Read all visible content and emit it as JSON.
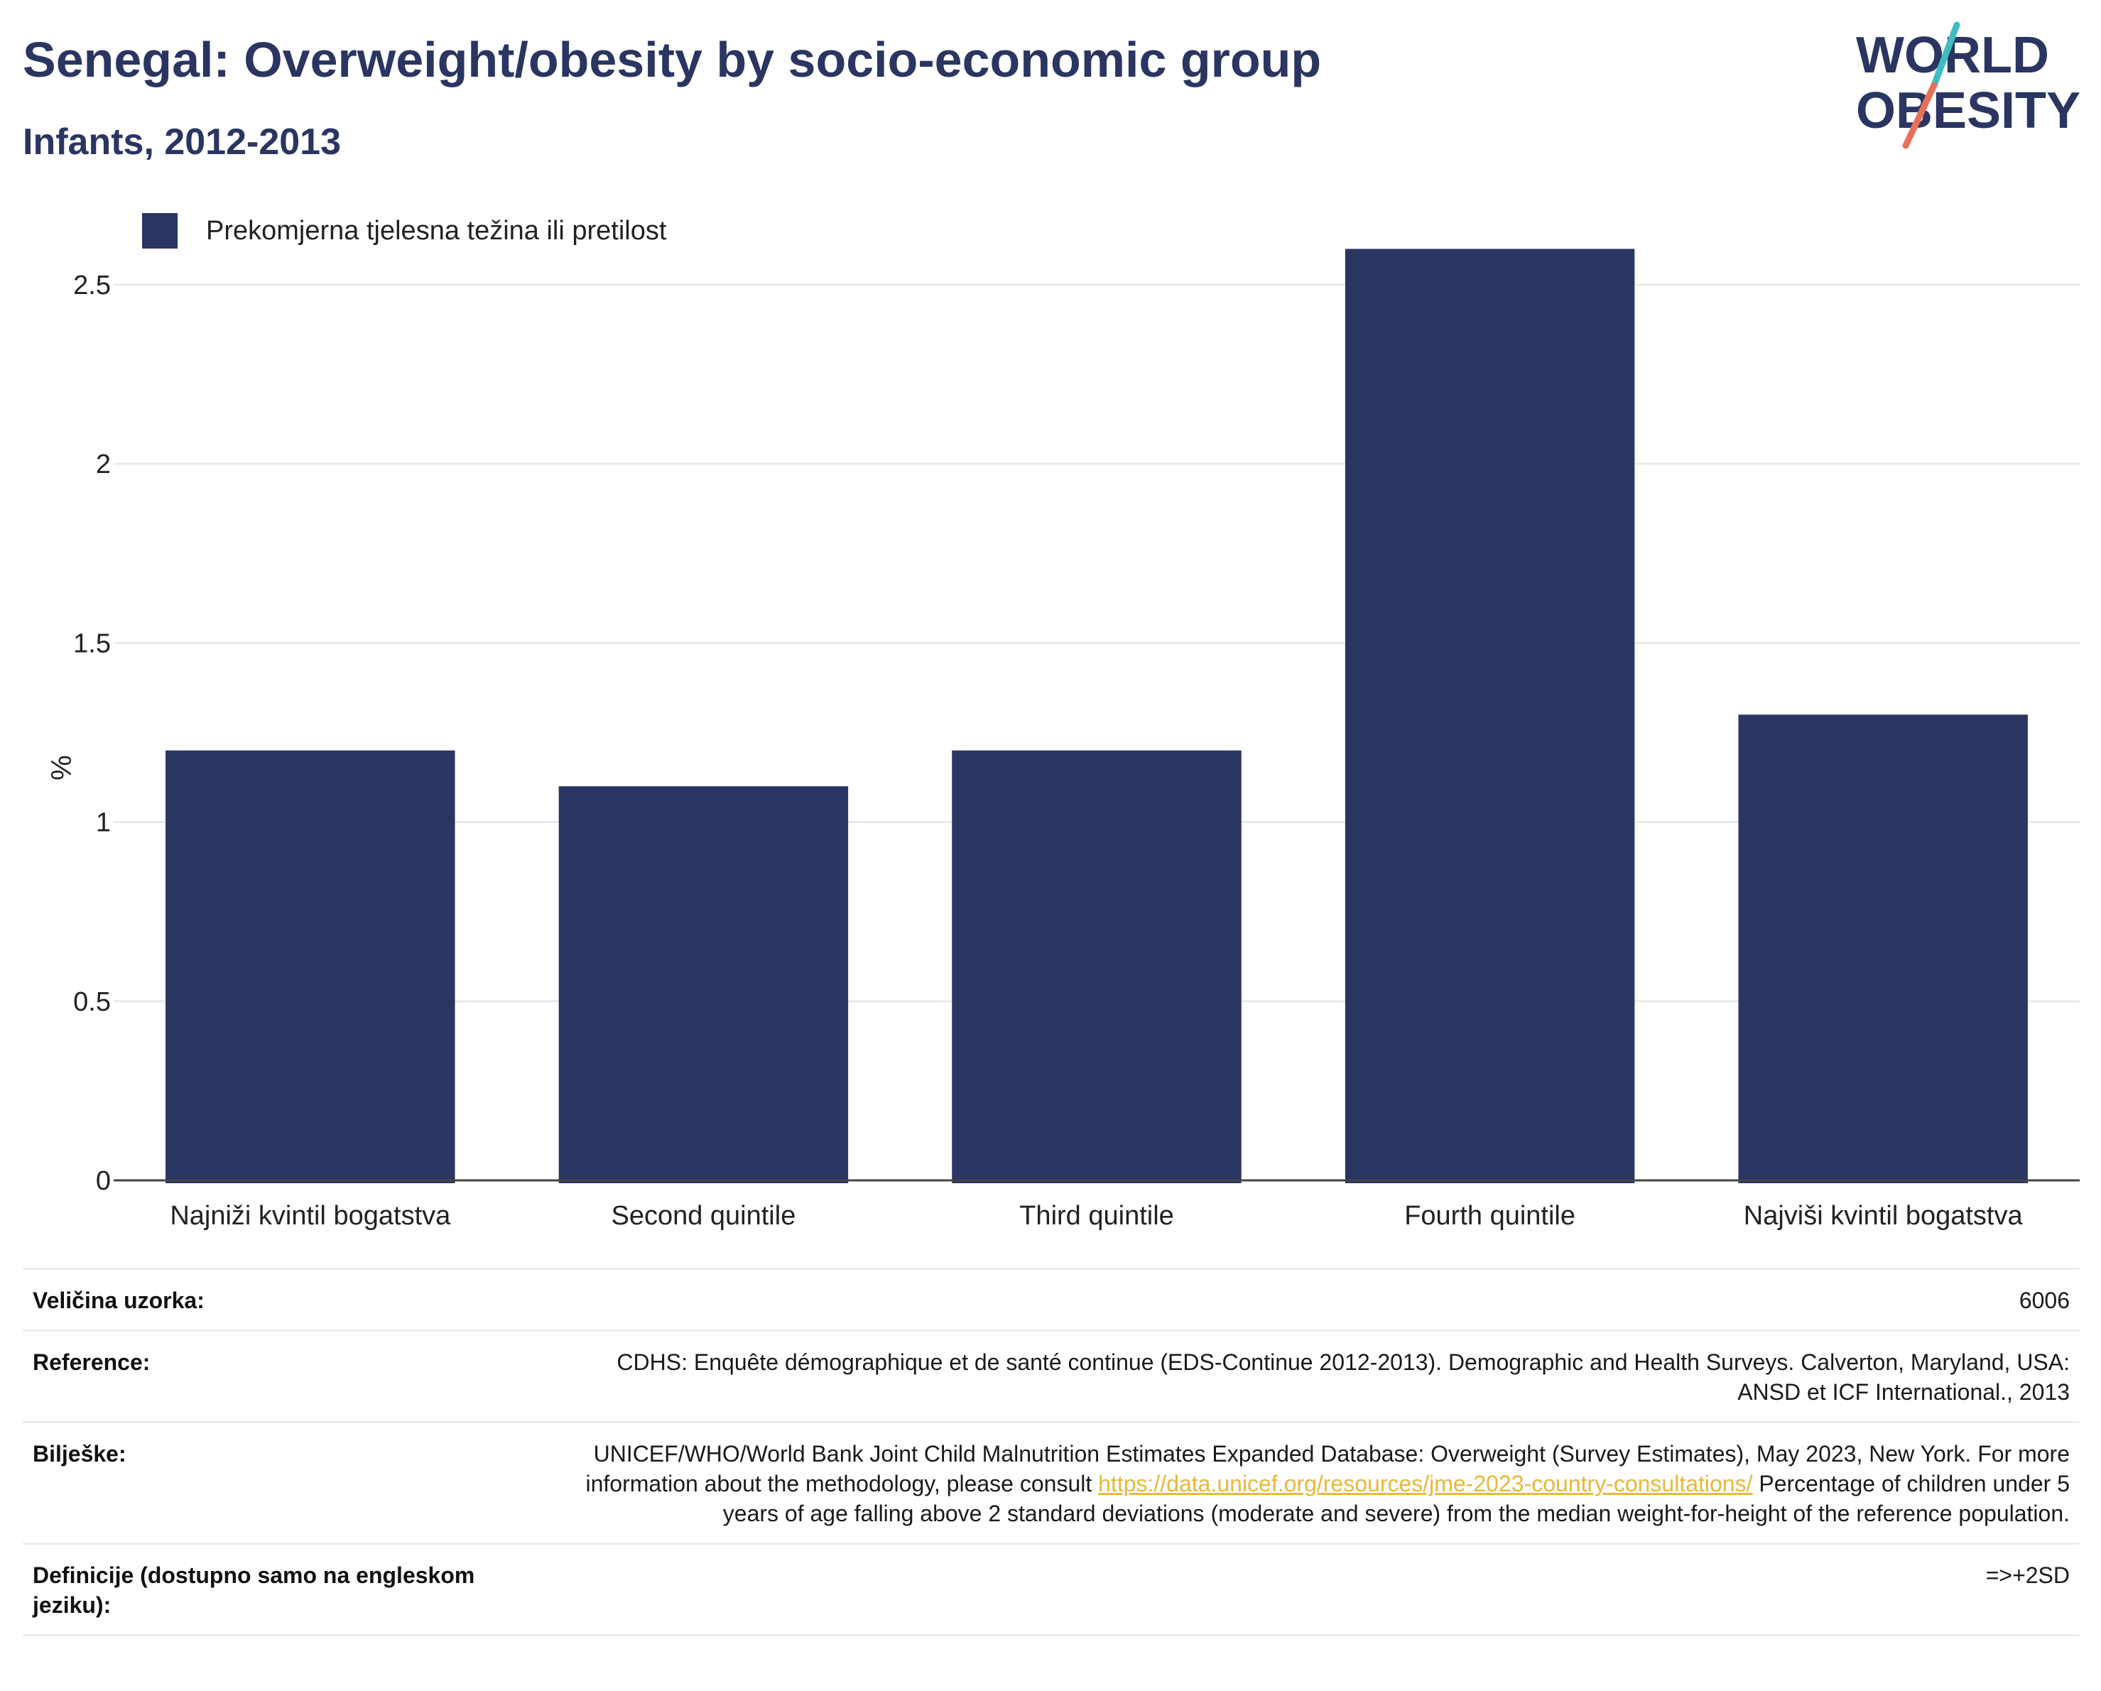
{
  "header": {
    "title": "Senegal: Overweight/obesity by socio-economic group",
    "subtitle": "Infants, 2012-2013"
  },
  "logo": {
    "line1": "WORLD",
    "line2": "OBESITY",
    "colors": {
      "text": "#2a3561",
      "slash_teal": "#3fbcc0",
      "slash_coral": "#e8705a"
    }
  },
  "legend": {
    "label": "Prekomjerna tjelesna težina ili pretilost",
    "color": "#2a3561"
  },
  "chart_data": {
    "type": "bar",
    "categories": [
      "Najniži kvintil bogatstva",
      "Second quintile",
      "Third quintile",
      "Fourth quintile",
      "Najviši kvintil bogatstva"
    ],
    "series": [
      {
        "name": "Prekomjerna tjelesna težina ili pretilost",
        "values": [
          1.2,
          1.1,
          1.2,
          2.6,
          1.3
        ],
        "color": "#2a3561"
      }
    ],
    "ylabel": "%",
    "xlabel": "",
    "ylim": [
      0,
      2.7
    ],
    "yticks": [
      0,
      0.5,
      1,
      1.5,
      2,
      2.5
    ],
    "ytick_labels": [
      "0",
      "0.5",
      "1",
      "1.5",
      "2",
      "2.5"
    ],
    "grid": true,
    "legend_position": "top-left"
  },
  "info": {
    "sample_size_label": "Veličina uzorka:",
    "sample_size_value": "6006",
    "reference_label": "Reference:",
    "reference_value": "CDHS: Enquête démographique et de santé continue (EDS-Continue 2012-2013). Demographic and Health Surveys. Calverton, Maryland, USA: ANSD et ICF International., 2013",
    "notes_label": "Bilješke:",
    "notes_text_1": "UNICEF/WHO/World Bank Joint Child Malnutrition Estimates Expanded Database: Overweight (Survey Estimates), May 2023, New York. For more information about the methodology, please consult ",
    "notes_link": "https://data.unicef.org/resources/jme-2023-country-consultations/",
    "notes_text_2": " Percentage of children under 5 years of age falling above 2 standard deviations (moderate and severe) from the median weight-for-height of the reference population.",
    "definitions_label": "Definicije (dostupno samo na engleskom jeziku):",
    "definitions_value": "=>+2SD"
  }
}
